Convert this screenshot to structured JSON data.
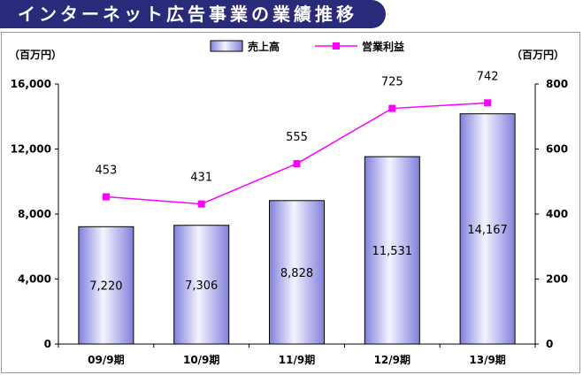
{
  "banner": {
    "title": "インターネット広告事業の業績推移"
  },
  "chart_data": {
    "type": "bar",
    "categories": [
      "09/9期",
      "10/9期",
      "11/9期",
      "12/9期",
      "13/9期"
    ],
    "series": [
      {
        "name": "売上高",
        "type": "bar",
        "axis": "left",
        "values": [
          7220,
          7306,
          8828,
          11531,
          14167
        ],
        "labels": [
          "7,220",
          "7,306",
          "8,828",
          "11,531",
          "14,167"
        ],
        "color": "#b8b8f0"
      },
      {
        "name": "営業利益",
        "type": "line",
        "axis": "right",
        "values": [
          453,
          431,
          555,
          725,
          742
        ],
        "labels": [
          "453",
          "431",
          "555",
          "725",
          "742"
        ],
        "color": "#ff00ff"
      }
    ],
    "y_left": {
      "unit": "（百万円）",
      "range": [
        0,
        16000
      ],
      "ticks": [
        "0",
        "4,000",
        "8,000",
        "12,000",
        "16,000"
      ]
    },
    "y_right": {
      "unit": "（百万円）",
      "range": [
        0,
        800
      ],
      "ticks": [
        "0",
        "200",
        "400",
        "600",
        "800"
      ]
    },
    "legend": {
      "placement": "top-center"
    },
    "grid": false
  }
}
